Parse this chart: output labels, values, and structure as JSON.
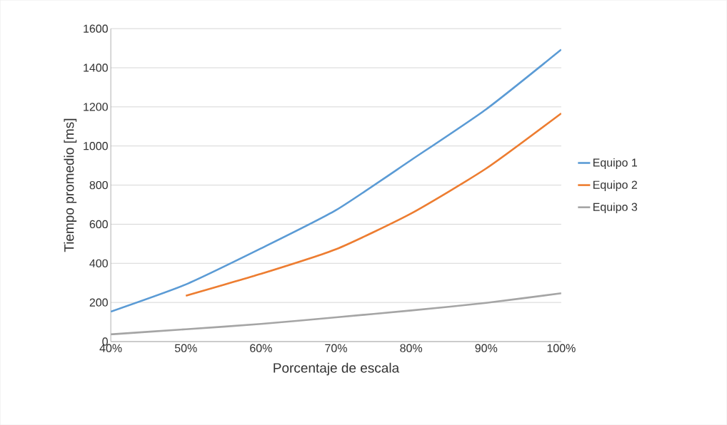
{
  "chart_data": {
    "type": "line",
    "xlabel": "Porcentaje de escala",
    "ylabel": "Tiempo promedio [ms]",
    "x": [
      40,
      50,
      60,
      70,
      80,
      90,
      100
    ],
    "series": [
      {
        "name": "Equipo 1",
        "color": "#5b9bd5",
        "values": [
          153,
          292,
          476,
          672,
          928,
          1188,
          1493
        ]
      },
      {
        "name": "Equipo 2",
        "color": "#ed7d31",
        "values": [
          null,
          234,
          346,
          472,
          655,
          885,
          1167
        ]
      },
      {
        "name": "Equipo 3",
        "color": "#a5a5a5",
        "values": [
          37,
          63,
          90,
          124,
          159,
          198,
          247
        ]
      }
    ],
    "xlim": [
      40,
      100
    ],
    "xticks": [
      {
        "value": 40,
        "label": "40%"
      },
      {
        "value": 50,
        "label": "50%"
      },
      {
        "value": 60,
        "label": "60%"
      },
      {
        "value": 70,
        "label": "70%"
      },
      {
        "value": 80,
        "label": "80%"
      },
      {
        "value": 90,
        "label": "90%"
      },
      {
        "value": 100,
        "label": "100%"
      }
    ],
    "ylim": [
      0,
      1600
    ],
    "yticks": [
      0,
      200,
      400,
      600,
      800,
      1000,
      1200,
      1400,
      1600
    ],
    "grid": "y",
    "legend": "right",
    "marker": "none",
    "line_style": "solid"
  }
}
